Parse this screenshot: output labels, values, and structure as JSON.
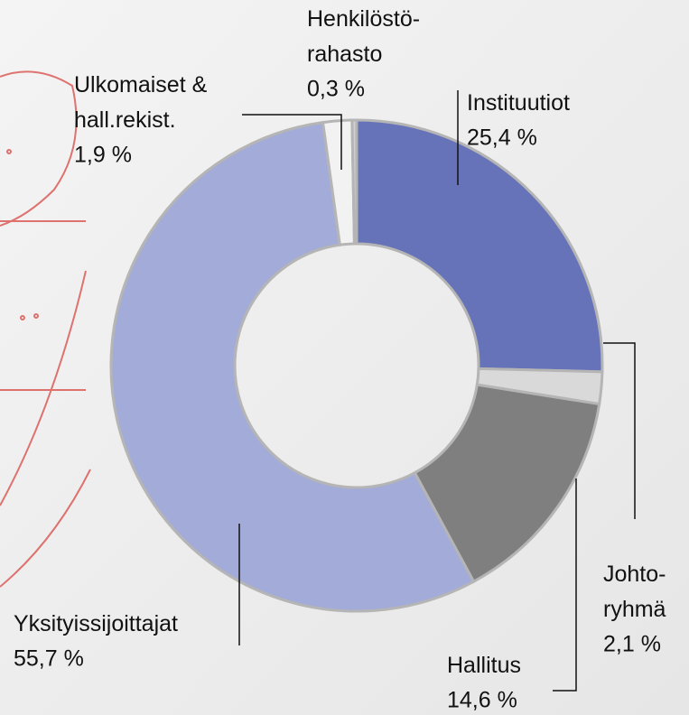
{
  "chart_data": {
    "type": "donut",
    "categories": [
      "Instituutiot",
      "Johto-\nryhmä",
      "Hallitus",
      "Yksityissijoittajat",
      "Ulkomaiset &\nhall.rekist.",
      "Henkilöstö-\nrahasto"
    ],
    "values": [
      25.4,
      2.1,
      14.6,
      55.7,
      1.9,
      0.3
    ],
    "value_labels": [
      "25,4 %",
      "2,1 %",
      "14,6 %",
      "55,7 %",
      "1,9 %",
      "0,3 %"
    ],
    "colors": [
      "#6673b8",
      "#d9d9d9",
      "#7f7f7f",
      "#a3acd8",
      "#f2f2f2",
      "#d0d0d0"
    ]
  }
}
